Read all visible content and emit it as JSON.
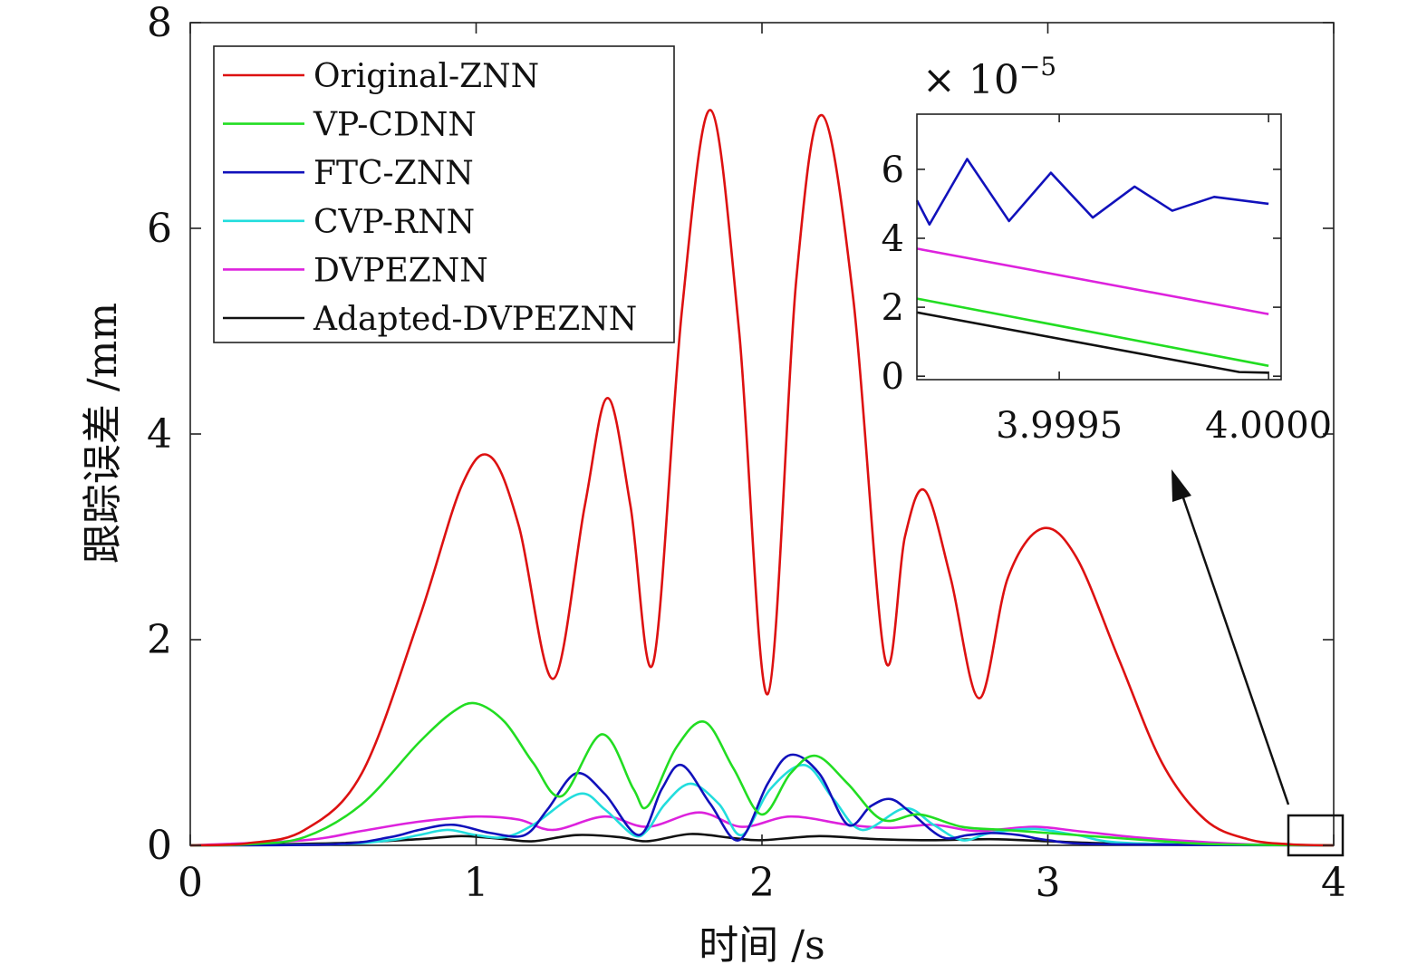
{
  "chart_data": [
    {
      "type": "line",
      "title": "",
      "xlabel": "时间 /s",
      "ylabel": "跟踪误差 /mm",
      "xlim": [
        0,
        4
      ],
      "ylim": [
        0,
        8
      ],
      "xticks": [
        0,
        1,
        2,
        3,
        4
      ],
      "yticks": [
        0,
        2,
        4,
        6,
        8
      ],
      "xtick_labels": [
        "0",
        "1",
        "2",
        "3",
        "4"
      ],
      "ytick_labels": [
        "0",
        "2",
        "4",
        "6",
        "8"
      ],
      "grid": false,
      "legend_position": "top-left",
      "series": [
        {
          "name": "Original-ZNN",
          "color": "#dd1111",
          "x": [
            0,
            0.2,
            0.4,
            0.6,
            0.8,
            0.95,
            1.05,
            1.15,
            1.27,
            1.38,
            1.46,
            1.54,
            1.62,
            1.72,
            1.82,
            1.92,
            2.02,
            2.12,
            2.21,
            2.32,
            2.43,
            2.5,
            2.57,
            2.66,
            2.76,
            2.86,
            2.98,
            3.1,
            3.25,
            3.4,
            3.55,
            3.7,
            3.85,
            4.0
          ],
          "values": [
            0,
            0.02,
            0.15,
            0.7,
            2.2,
            3.5,
            3.78,
            3.1,
            1.62,
            3.3,
            4.35,
            3.3,
            1.78,
            5.2,
            7.15,
            5.0,
            1.47,
            5.5,
            7.1,
            5.3,
            1.82,
            3.0,
            3.45,
            2.6,
            1.43,
            2.6,
            3.08,
            2.8,
            1.8,
            0.8,
            0.25,
            0.06,
            0.01,
            0
          ]
        },
        {
          "name": "VP-CDNN",
          "color": "#22dd22",
          "x": [
            0,
            0.2,
            0.4,
            0.6,
            0.8,
            0.92,
            1.0,
            1.1,
            1.2,
            1.3,
            1.44,
            1.55,
            1.6,
            1.7,
            1.8,
            1.9,
            2.0,
            2.1,
            2.19,
            2.3,
            2.42,
            2.55,
            2.7,
            2.85,
            3.0,
            3.2,
            3.4,
            3.6,
            4.0
          ],
          "values": [
            0,
            0.01,
            0.08,
            0.4,
            1.0,
            1.3,
            1.38,
            1.2,
            0.8,
            0.48,
            1.08,
            0.55,
            0.38,
            0.95,
            1.2,
            0.75,
            0.3,
            0.7,
            0.87,
            0.6,
            0.25,
            0.3,
            0.18,
            0.15,
            0.12,
            0.08,
            0.04,
            0.01,
            0
          ]
        },
        {
          "name": "FTC-ZNN",
          "color": "#1111bb",
          "x": [
            0,
            0.5,
            0.7,
            0.8,
            0.92,
            1.05,
            1.17,
            1.25,
            1.35,
            1.45,
            1.57,
            1.65,
            1.72,
            1.82,
            1.92,
            2.02,
            2.1,
            2.2,
            2.3,
            2.38,
            2.45,
            2.52,
            2.63,
            2.72,
            2.8,
            2.9,
            3.0,
            3.2,
            4.0
          ],
          "values": [
            0,
            0.01,
            0.08,
            0.15,
            0.2,
            0.12,
            0.1,
            0.35,
            0.7,
            0.5,
            0.1,
            0.55,
            0.78,
            0.4,
            0.05,
            0.6,
            0.88,
            0.7,
            0.2,
            0.38,
            0.45,
            0.32,
            0.08,
            0.1,
            0.12,
            0.1,
            0.05,
            0.01,
            0
          ]
        },
        {
          "name": "CVP-RNN",
          "color": "#22dddd",
          "x": [
            0,
            0.5,
            0.7,
            0.8,
            0.9,
            1.0,
            1.1,
            1.2,
            1.36,
            1.45,
            1.55,
            1.6,
            1.66,
            1.75,
            1.85,
            1.93,
            2.03,
            2.15,
            2.25,
            2.35,
            2.5,
            2.6,
            2.7,
            2.8,
            2.95,
            3.1,
            3.3,
            4.0
          ],
          "values": [
            0,
            0.01,
            0.05,
            0.1,
            0.15,
            0.1,
            0.08,
            0.2,
            0.5,
            0.35,
            0.1,
            0.15,
            0.4,
            0.6,
            0.4,
            0.1,
            0.55,
            0.78,
            0.45,
            0.15,
            0.36,
            0.2,
            0.05,
            0.12,
            0.16,
            0.1,
            0.02,
            0
          ]
        },
        {
          "name": "DVPEZNN",
          "color": "#dd22dd",
          "x": [
            0,
            0.4,
            0.6,
            0.8,
            1.0,
            1.15,
            1.27,
            1.45,
            1.6,
            1.78,
            1.93,
            2.1,
            2.3,
            2.45,
            2.6,
            2.75,
            2.95,
            3.1,
            3.3,
            3.5,
            3.7,
            4.0
          ],
          "values": [
            0,
            0.05,
            0.14,
            0.23,
            0.28,
            0.25,
            0.15,
            0.28,
            0.18,
            0.32,
            0.18,
            0.28,
            0.2,
            0.17,
            0.2,
            0.14,
            0.18,
            0.14,
            0.08,
            0.04,
            0.01,
            0
          ]
        },
        {
          "name": "Adapted-DVPEZNN",
          "color": "#111111",
          "x": [
            0,
            0.5,
            0.8,
            0.95,
            1.1,
            1.2,
            1.35,
            1.5,
            1.6,
            1.75,
            1.9,
            2.0,
            2.2,
            2.4,
            2.6,
            2.8,
            3.0,
            3.2,
            3.5,
            4.0
          ],
          "values": [
            0,
            0.02,
            0.06,
            0.09,
            0.06,
            0.04,
            0.1,
            0.08,
            0.04,
            0.11,
            0.07,
            0.05,
            0.09,
            0.06,
            0.05,
            0.06,
            0.04,
            0.02,
            0.01,
            0
          ]
        }
      ]
    },
    {
      "type": "line",
      "title": "",
      "xlabel": "",
      "ylabel": "",
      "y_multiplier_label": "× 10",
      "y_multiplier_exponent": "−5",
      "xlim": [
        3.99916,
        4.00003
      ],
      "ylim": [
        -0.1,
        7.6
      ],
      "xticks": [
        3.9995,
        4.0
      ],
      "xtick_labels": [
        "3.9995",
        "4.0000"
      ],
      "yticks": [
        0,
        2,
        4,
        6
      ],
      "ytick_labels": [
        "0",
        "2",
        "4",
        "6"
      ],
      "grid": false,
      "series": [
        {
          "color": "#1111bb",
          "x": [
            3.99916,
            3.99919,
            3.99928,
            3.99938,
            3.99948,
            3.99958,
            3.99968,
            3.99977,
            3.99987,
            4.0
          ],
          "values": [
            5.1,
            4.4,
            6.3,
            4.5,
            5.9,
            4.6,
            5.5,
            4.8,
            5.2,
            5.0
          ]
        },
        {
          "color": "#dd22dd",
          "x": [
            3.99916,
            4.0
          ],
          "values": [
            3.7,
            1.8
          ]
        },
        {
          "color": "#22dd22",
          "x": [
            3.99916,
            4.0
          ],
          "values": [
            2.25,
            0.3
          ]
        },
        {
          "color": "#111111",
          "x": [
            3.99916,
            3.99993,
            4.0
          ],
          "values": [
            1.85,
            0.12,
            0.1
          ]
        }
      ]
    }
  ]
}
